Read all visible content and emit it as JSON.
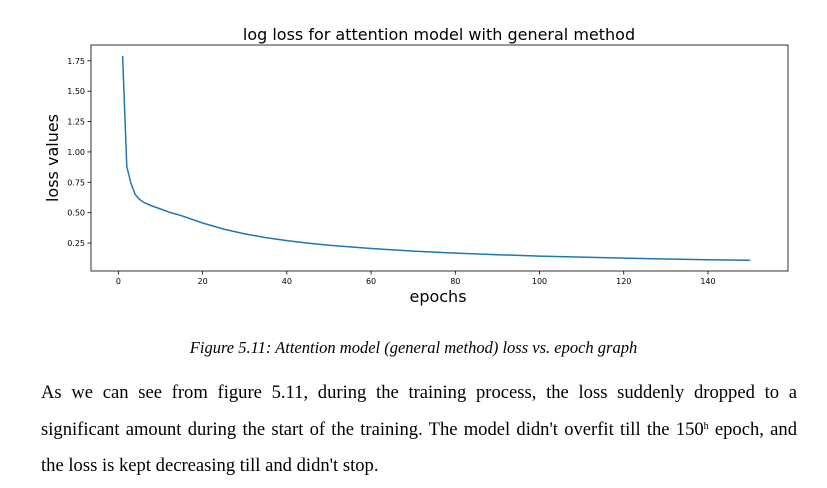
{
  "chart_data": {
    "type": "line",
    "title": "log loss for attention model with general method",
    "xlabel": "epochs",
    "ylabel": "loss values",
    "xlim": [
      -6.5,
      159
    ],
    "ylim": [
      0.02,
      1.88
    ],
    "xticks": [
      0,
      20,
      40,
      60,
      80,
      100,
      120,
      140
    ],
    "yticks": [
      0.25,
      0.5,
      0.75,
      1.0,
      1.25,
      1.5,
      1.75
    ],
    "xtick_labels": [
      "0",
      "20",
      "40",
      "60",
      "80",
      "100",
      "120",
      "140"
    ],
    "ytick_labels": [
      "0.25",
      "0.50",
      "0.75",
      "1.00",
      "1.25",
      "1.50",
      "1.75"
    ],
    "grid": false,
    "series": [
      {
        "color": "#1f77b4",
        "x": [
          1,
          2,
          3,
          4,
          5,
          6,
          8,
          10,
          12,
          15,
          20,
          25,
          30,
          35,
          40,
          45,
          50,
          60,
          70,
          80,
          90,
          100,
          110,
          120,
          130,
          140,
          150
        ],
        "y": [
          1.79,
          0.88,
          0.74,
          0.65,
          0.61,
          0.585,
          0.555,
          0.53,
          0.505,
          0.475,
          0.415,
          0.365,
          0.325,
          0.295,
          0.27,
          0.25,
          0.232,
          0.205,
          0.184,
          0.167,
          0.154,
          0.143,
          0.134,
          0.126,
          0.119,
          0.113,
          0.108
        ]
      }
    ]
  },
  "caption": "Figure 5.11: Attention model (general method) loss vs. epoch graph",
  "paragraph": {
    "part1": "As we can see from figure 5.11, during the training process, the loss suddenly dropped to a significant amount during the start of the training. The model didn't overfit till the 150",
    "superscript": "h",
    "part2": " epoch, and the loss is kept decreasing till and didn't stop."
  }
}
